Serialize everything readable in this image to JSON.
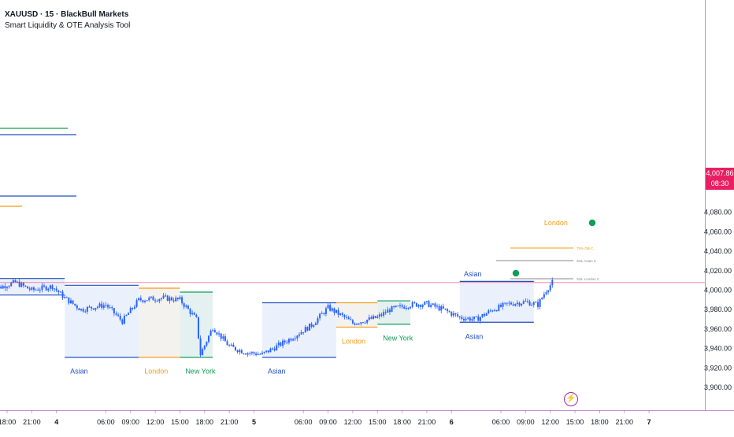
{
  "header": {
    "symbol_line": "XAUUSD · 15 · BlackBull Markets",
    "indicator_line": "Smart Liquidity & OTE Analysis Tool"
  },
  "last_price": {
    "value": "4,007.86",
    "countdown": "08:30",
    "color": "#e91e63"
  },
  "event_marker_icon": "lightning-icon",
  "colors": {
    "candle": "#2962ff",
    "asian": "#1e4fbf",
    "asian_fill": "#e8effc",
    "london": "#f39c12",
    "london_fill": "#f2f0ec",
    "newyork": "#0f9d58",
    "newyork_fill": "#e0efef",
    "current_price": "#e91e63",
    "axis_border": "#9c27b0",
    "text": "#131722"
  },
  "chart_data": {
    "type": "candlestick",
    "title": "",
    "ylim": [
      3886,
      4100
    ],
    "y_ticks": [
      "3,900.00",
      "3,920.00",
      "3,940.00",
      "3,960.00",
      "3,980.00",
      "4,000.00",
      "4,020.00",
      "4,040.00",
      "4,060.00",
      "4,080.00"
    ],
    "x_ticks": [
      "18:00",
      "21:00",
      "4",
      "06:00",
      "09:00",
      "12:00",
      "15:00",
      "18:00",
      "21:00",
      "5",
      "06:00",
      "09:00",
      "12:00",
      "15:00",
      "18:00",
      "21:00",
      "6",
      "06:00",
      "09:00",
      "12:00",
      "15:00",
      "18:00",
      "21:00",
      "7"
    ],
    "price_path": [
      [
        "Nov 3 16:00",
        4000
      ],
      [
        "Nov 3 19:00",
        4008
      ],
      [
        "Nov 3 21:00",
        4000
      ],
      [
        "Nov 3 23:30",
        4004
      ],
      [
        "Nov 4 01:00",
        3992
      ],
      [
        "Nov 4 03:00",
        3980
      ],
      [
        "Nov 4 06:00",
        3985
      ],
      [
        "Nov 4 08:00",
        3968
      ],
      [
        "Nov 4 10:00",
        3990
      ],
      [
        "Nov 4 13:00",
        3992
      ],
      [
        "Nov 4 15:00",
        3990
      ],
      [
        "Nov 4 17:00",
        3970
      ],
      [
        "Nov 4 17:30",
        3934
      ],
      [
        "Nov 4 19:00",
        3962
      ],
      [
        "Nov 4 21:00",
        3942
      ],
      [
        "Nov 4 23:00",
        3936
      ],
      [
        "Nov 5 01:00",
        3934
      ],
      [
        "Nov 5 04:00",
        3948
      ],
      [
        "Nov 5 07:00",
        3964
      ],
      [
        "Nov 5 09:00",
        3982
      ],
      [
        "Nov 5 11:00",
        3972
      ],
      [
        "Nov 5 12:00",
        3966
      ],
      [
        "Nov 5 15:00",
        3972
      ],
      [
        "Nov 5 16:30",
        3980
      ],
      [
        "Nov 5 19:00",
        3985
      ],
      [
        "Nov 5 21:00",
        3986
      ],
      [
        "Nov 5 23:00",
        3980
      ],
      [
        "Nov 6 01:00",
        3972
      ],
      [
        "Nov 6 03:00",
        3970
      ],
      [
        "Nov 6 05:00",
        3980
      ],
      [
        "Nov 6 07:00",
        3986
      ],
      [
        "Nov 6 09:00",
        3988
      ],
      [
        "Nov 6 10:30",
        3985
      ],
      [
        "Nov 6 11:30",
        4000
      ],
      [
        "Nov 6 12:15",
        4007.86
      ]
    ],
    "session_boxes": [
      {
        "session": "asian",
        "from": "Nov 3 16:00",
        "to": "Nov 4 01:00",
        "high": 4012,
        "low": 3995,
        "label": ""
      },
      {
        "session": "asian",
        "from": "Nov 4 01:00",
        "to": "Nov 4 10:00",
        "high": 4005,
        "low": 3931,
        "label": "Asian"
      },
      {
        "session": "london",
        "from": "Nov 4 10:00",
        "to": "Nov 4 15:00",
        "high": 4002,
        "low": 3931,
        "label": "London"
      },
      {
        "session": "newyork",
        "from": "Nov 4 15:00",
        "to": "Nov 4 19:00",
        "high": 3998,
        "low": 3931,
        "label": "New York"
      },
      {
        "session": "asian",
        "from": "Nov 5 01:00",
        "to": "Nov 5 10:00",
        "high": 3987,
        "low": 3931,
        "label": "Asian"
      },
      {
        "session": "london",
        "from": "Nov 5 10:00",
        "to": "Nov 5 15:00",
        "high": 3987,
        "low": 3962,
        "label": "London"
      },
      {
        "session": "newyork",
        "from": "Nov 5 15:00",
        "to": "Nov 5 19:00",
        "high": 3989,
        "low": 3965,
        "label": "New York"
      },
      {
        "session": "asian",
        "from": "Nov 6 01:00",
        "to": "Nov 6 10:00",
        "high": 4009,
        "low": 3967,
        "label": "Asian"
      }
    ],
    "annotations": [
      {
        "text": "London",
        "color": "#f39c12"
      },
      {
        "text": "Asian",
        "color": "#1e4fbf"
      },
      {
        "text": "75% OB-C",
        "color": "#f39c12"
      },
      {
        "text": "SSL Asian C",
        "color": "#888888"
      },
      {
        "text": "SSL London C",
        "color": "#888888"
      }
    ]
  }
}
